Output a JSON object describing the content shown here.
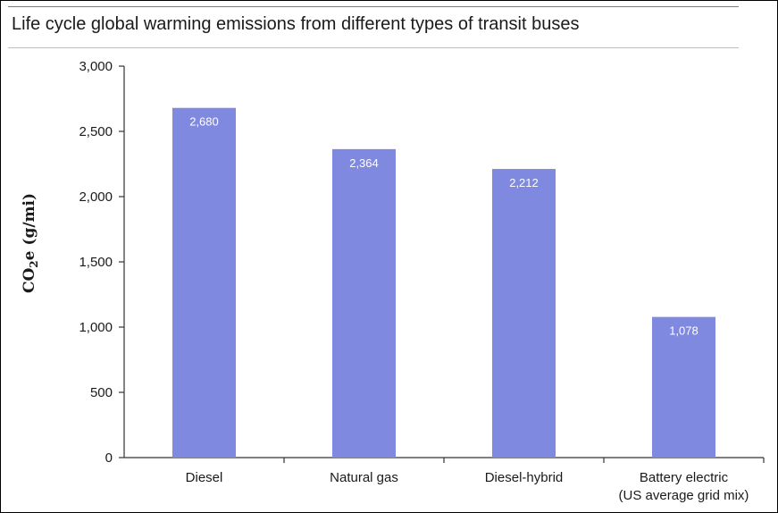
{
  "title": "Life cycle global warming emissions from different types of transit buses",
  "colors": {
    "bar": "#8089e0",
    "accent_rule": "#6b6fd6",
    "axis": "#333333"
  },
  "chart_data": {
    "type": "bar",
    "categories": [
      "Diesel",
      "Natural gas",
      "Diesel-hybrid",
      "Battery electric\n(US average grid mix)"
    ],
    "values": [
      2680,
      2364,
      2212,
      1078
    ],
    "value_labels": [
      "2,680",
      "2,364",
      "2,212",
      "1,078"
    ],
    "xlabel": "",
    "ylabel_parts": [
      "CO",
      "2",
      "e (g/mi)"
    ],
    "ylim": [
      0,
      3000
    ],
    "yticks": [
      0,
      500,
      1000,
      1500,
      2000,
      2500,
      3000
    ],
    "ytick_labels": [
      "0",
      "500",
      "1,000",
      "1,500",
      "2,000",
      "2,500",
      "3,000"
    ],
    "grid": false,
    "legend": "none"
  }
}
